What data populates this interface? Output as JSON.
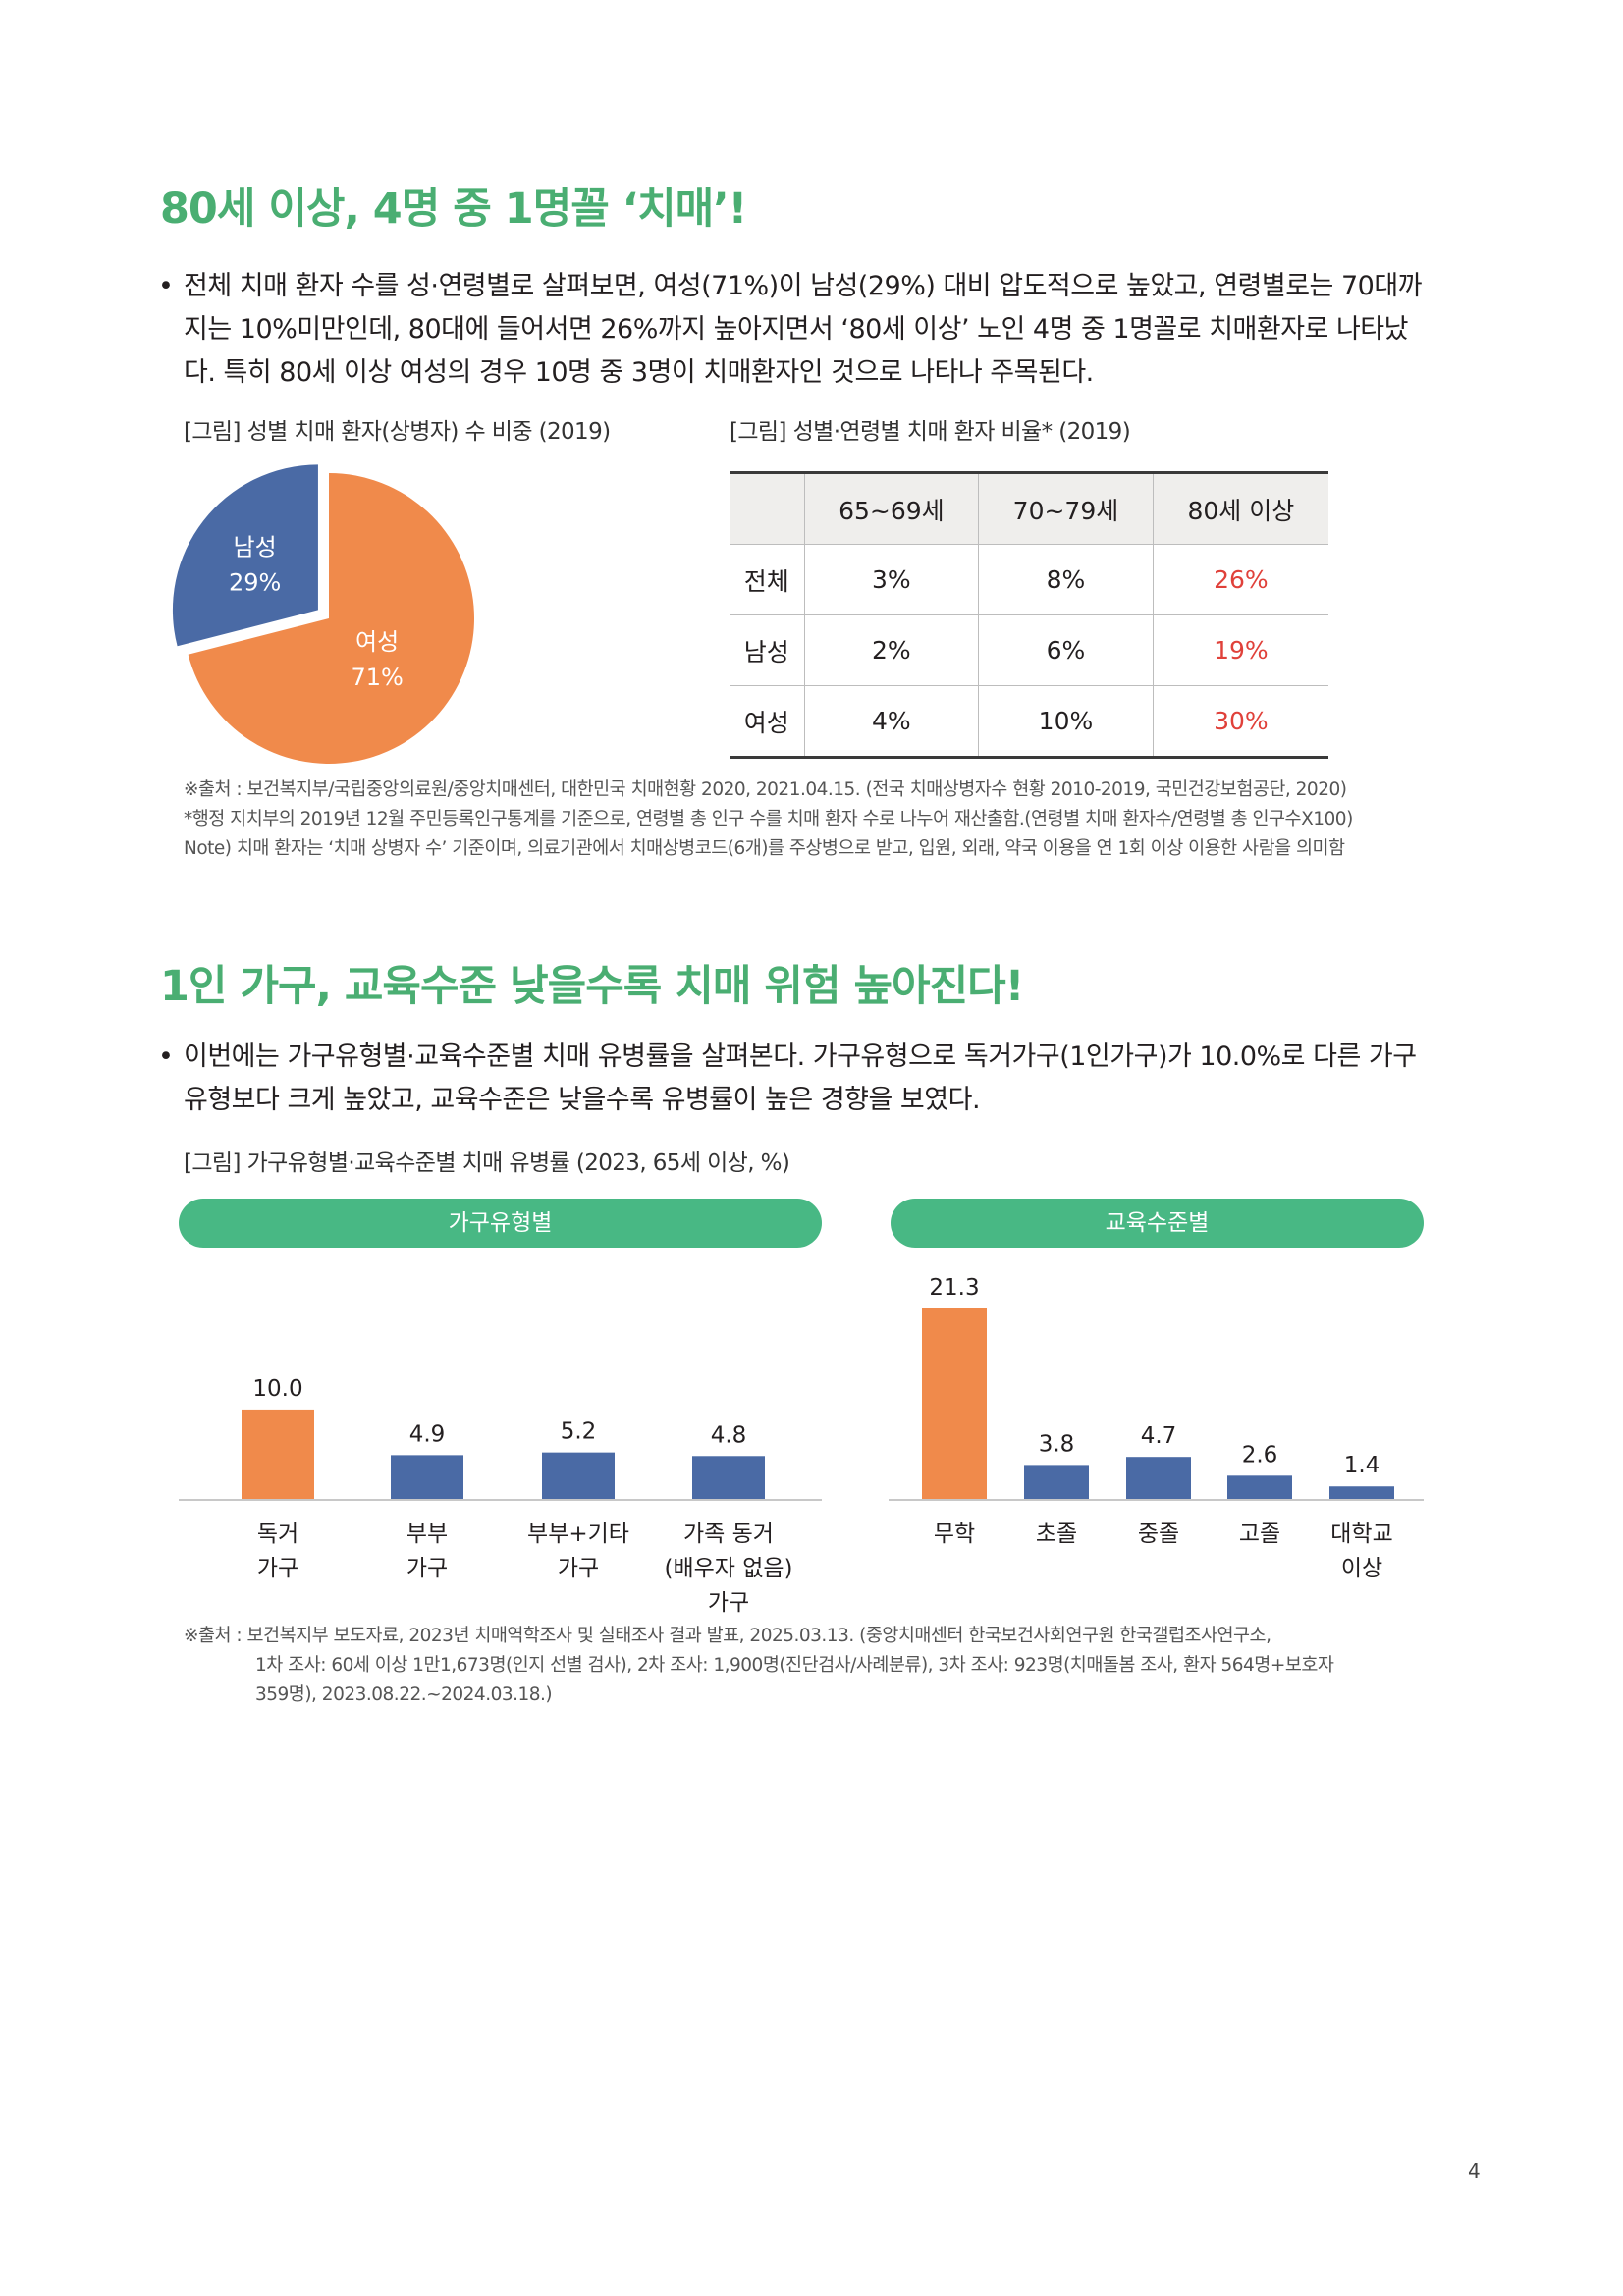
{
  "section1": {
    "title": "80세 이상, 4명 중 1명꼴 ‘치매’!",
    "bullet": "•",
    "lines": [
      "전체 치매 환자 수를 성·연령별로 살펴보면, 여성(71%)이 남성(29%) 대비 압도적으로 높았고, 연령별로는 70대까",
      "지는 10%미만인데, 80대에 들어서면 26%까지 높아지면서 ‘80세 이상’ 노인 4명 중 1명꼴로 치매환자로 나타났",
      "다. 특히 80세 이상 여성의 경우 10명 중 3명이 치매환자인 것으로 나타나 주목된다."
    ],
    "pie_caption": "[그림] 성별 치매 환자(상병자) 수 비중 (2019)",
    "table_caption": "[그림] 성별·연령별 치매 환자 비율* (2019)",
    "pie": {
      "male_label": "남성",
      "male_value": "29%",
      "female_label": "여성",
      "female_value": "71%",
      "male_color": "#4a6aa5",
      "female_color": "#f08a4b"
    },
    "table": {
      "headers": [
        "",
        "65~69세",
        "70~79세",
        "80세 이상"
      ],
      "rows": [
        {
          "label": "전체",
          "values": [
            "3%",
            "8%",
            "26%"
          ]
        },
        {
          "label": "남성",
          "values": [
            "2%",
            "6%",
            "19%"
          ]
        },
        {
          "label": "여성",
          "values": [
            "4%",
            "10%",
            "30%"
          ]
        }
      ]
    },
    "sources": [
      "※출처 : 보건복지부/국립중앙의료원/중앙치매센터, 대한민국 치매현황 2020, 2021.04.15. (전국 치매상병자수 현황 2010-2019, 국민건강보험공단, 2020)",
      "*행정 지치부의 2019년 12월 주민등록인구통계를 기준으로, 연령별 총 인구 수를 치매 환자 수로 나누어 재산출함.(연령별 치매 환자수/연령별 총 인구수X100)",
      "Note) 치매 환자는 ‘치매 상병자 수’ 기준이며, 의료기관에서 치매상병코드(6개)를 주상병으로 받고, 입원, 외래, 약국 이용을 연 1회 이상 이용한 사람을 의미함"
    ]
  },
  "section2": {
    "title": "1인 가구, 교육수준 낮을수록 치매 위험 높아진다!",
    "bullet": "•",
    "lines": [
      "이번에는 가구유형별·교육수준별 치매 유병률을 살펴본다. 가구유형으로 독거가구(1인가구)가 10.0%로 다른 가구",
      "유형보다 크게 높았고, 교육수준은 낮을수록 유병률이 높은 경향을 보였다."
    ],
    "caption": "[그림] 가구유형별·교육수준별 치매 유병률 (2023, 65세 이상, %)",
    "pill_household": "가구유형별",
    "pill_education": "교육수준별",
    "sources": [
      "※출처 : 보건복지부 보도자료, 2023년 치매역학조사 및 실태조사 결과 발표, 2025.03.13. (중앙치매센터 한국보건사회연구원 한국갤럽조사연구소,",
      "1차 조사: 60세 이상 1만1,673명(인지 선별 검사), 2차 조사: 1,900명(진단검사/사례분류), 3차 조사: 923명(치매돌봄 조사, 환자 564명+보호자",
      "359명), 2023.08.22.~2024.03.18.)"
    ]
  },
  "chart_data": [
    {
      "type": "pie",
      "labels": [
        "남성",
        "여성"
      ],
      "values": [
        29,
        71
      ],
      "colors": [
        "#4a6aa5",
        "#f08a4b"
      ]
    },
    {
      "type": "bar",
      "categories": [
        [
          "독거",
          "가구"
        ],
        [
          "부부",
          "가구"
        ],
        [
          "부부+기타",
          "가구"
        ],
        [
          "가족 동거",
          "(배우자 없음)",
          "가구"
        ]
      ],
      "values": [
        10.0,
        4.9,
        5.2,
        4.8
      ],
      "labels": [
        "10.0",
        "4.9",
        "5.2",
        "4.8"
      ],
      "highlight_color": "#f08a4b",
      "bar_color": "#4a6aa5",
      "ylim": [
        0,
        25
      ]
    },
    {
      "type": "bar",
      "categories": [
        [
          "무학"
        ],
        [
          "초졸"
        ],
        [
          "중졸"
        ],
        [
          "고졸"
        ],
        [
          "대학교",
          "이상"
        ]
      ],
      "values": [
        21.3,
        3.8,
        4.7,
        2.6,
        1.4
      ],
      "labels": [
        "21.3",
        "3.8",
        "4.7",
        "2.6",
        "1.4"
      ],
      "highlight_color": "#f08a4b",
      "bar_color": "#4a6aa5",
      "ylim": [
        0,
        25
      ]
    }
  ],
  "page_number": "4"
}
